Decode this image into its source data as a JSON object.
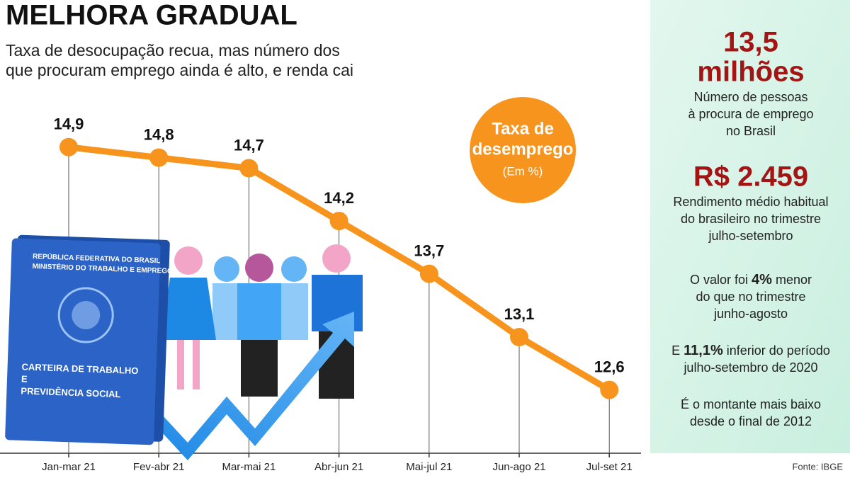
{
  "chart_data": {
    "type": "line",
    "title": "MELHORA GRADUAL",
    "subtitle_lines": [
      "Taxa de desocupação recua, mas número dos",
      "que procuram emprego ainda é alto, e renda cai"
    ],
    "categories": [
      "Jan-mar 21",
      "Fev-abr 21",
      "Mar-mai 21",
      "Abr-jun 21",
      "Mai-jul 21",
      "Jun-ago 21",
      "Jul-set 21"
    ],
    "values": [
      14.9,
      14.8,
      14.7,
      14.2,
      13.7,
      13.1,
      12.6
    ],
    "value_labels": [
      "14,9",
      "14,8",
      "14,7",
      "14,2",
      "13,7",
      "13,1",
      "12,6"
    ],
    "color": "#f7941d",
    "ylim": [
      12,
      15.2
    ],
    "legend_lines": [
      "Taxa de",
      "desemprego"
    ],
    "unit": "(Em %)",
    "source": "Fonte: IBGE"
  },
  "illustration": {
    "card_header": [
      "REPÚBLICA FEDERATIVA DO BRASIL",
      "MINISTÉRIO DO TRABALHO E EMPREGO"
    ],
    "card_title": [
      "CARTEIRA DE TRABALHO",
      "E",
      "PREVIDÊNCIA SOCIAL"
    ]
  },
  "panel": {
    "stats": [
      {
        "big": [
          "13,5",
          "milhões"
        ],
        "desc": [
          "Número de pessoas",
          "à procura de emprego",
          "no Brasil"
        ]
      },
      {
        "big": [
          "R$ 2.459"
        ],
        "desc": [
          "Rendimento médio habitual",
          "do brasileiro no trimestre",
          "julho-setembro"
        ]
      }
    ],
    "notes": [
      [
        [
          "O valor foi ",
          "4%",
          " menor"
        ],
        [
          "do que no trimestre"
        ],
        [
          "junho-agosto"
        ]
      ],
      [
        [
          "E ",
          "11,1%",
          " inferior do período"
        ],
        [
          "julho-setembro de 2020"
        ]
      ],
      [
        [
          "É o montante mais baixo"
        ],
        [
          "desde o final de 2012"
        ]
      ]
    ]
  }
}
